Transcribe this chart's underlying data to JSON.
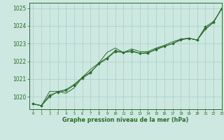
{
  "title": "Graphe pression niveau de la mer (hPa)",
  "bg_color": "#cce8e0",
  "grid_color": "#aacfca",
  "line_color": "#2d6a2d",
  "xlim": [
    -0.5,
    23
  ],
  "ylim": [
    1019.3,
    1025.3
  ],
  "yticks": [
    1020,
    1021,
    1022,
    1023,
    1024,
    1025
  ],
  "xticks": [
    0,
    1,
    2,
    3,
    4,
    5,
    6,
    7,
    8,
    9,
    10,
    11,
    12,
    13,
    14,
    15,
    16,
    17,
    18,
    19,
    20,
    21,
    22,
    23
  ],
  "series_with_markers": [
    [
      1019.6,
      1019.5,
      1020.0,
      1020.3,
      1020.4,
      1020.7,
      1021.1,
      1021.4,
      1021.85,
      1022.15,
      1022.55,
      1022.5,
      1022.6,
      1022.45,
      1022.5,
      1022.65,
      1022.85,
      1023.0,
      1023.25,
      1023.3,
      1023.2,
      1023.85,
      1024.2,
      1025.0
    ],
    [
      1019.6,
      1019.5,
      1020.1,
      1020.25,
      1020.35,
      1020.65,
      1021.05,
      1021.35,
      1021.9,
      1022.2,
      1022.6,
      1022.5,
      1022.55,
      1022.45,
      1022.45,
      1022.7,
      1022.85,
      1023.0,
      1023.2,
      1023.3,
      1023.2,
      1023.95,
      1024.25,
      1024.95
    ]
  ],
  "series_no_markers": [
    [
      1019.6,
      1019.5,
      1020.3,
      1020.3,
      1020.2,
      1020.5,
      1021.1,
      1021.55,
      1021.9,
      1022.5,
      1022.75,
      1022.5,
      1022.7,
      1022.55,
      1022.55,
      1022.75,
      1022.9,
      1023.1,
      1023.25,
      1023.3,
      1023.2,
      1023.8,
      1024.2,
      1025.0
    ]
  ]
}
